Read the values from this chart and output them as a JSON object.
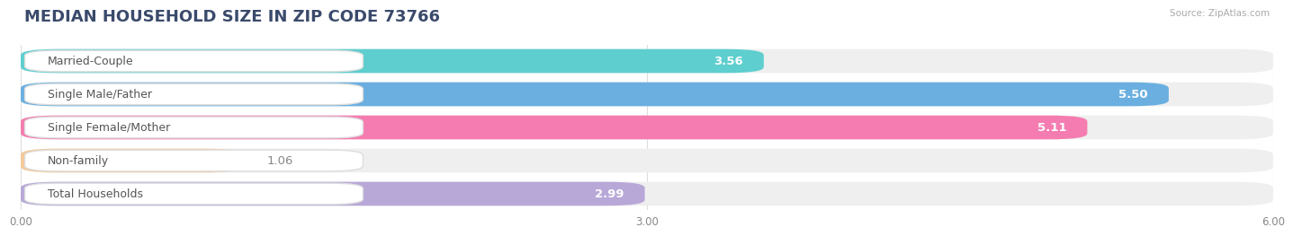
{
  "title": "MEDIAN HOUSEHOLD SIZE IN ZIP CODE 73766",
  "source": "Source: ZipAtlas.com",
  "categories": [
    "Married-Couple",
    "Single Male/Father",
    "Single Female/Mother",
    "Non-family",
    "Total Households"
  ],
  "values": [
    3.56,
    5.5,
    5.11,
    1.06,
    2.99
  ],
  "value_labels": [
    "3.56",
    "5.50",
    "5.11",
    "1.06",
    "2.99"
  ],
  "bar_colors": [
    "#5ecece",
    "#6aafe0",
    "#f47cb0",
    "#f5c99a",
    "#b8a8d8"
  ],
  "xlim": [
    0,
    6.0
  ],
  "xtick_labels": [
    "0.00",
    "3.00",
    "6.00"
  ],
  "xtick_vals": [
    0.0,
    3.0,
    6.0
  ],
  "value_fontsize": 9.5,
  "label_fontsize": 9,
  "title_fontsize": 13,
  "background_color": "#ffffff",
  "bar_background_color": "#efefef",
  "title_color": "#3a4a6b",
  "label_color": "#555555",
  "value_color_inside": "#ffffff",
  "value_color_outside": "#888888",
  "value_inside_threshold": 2.0
}
